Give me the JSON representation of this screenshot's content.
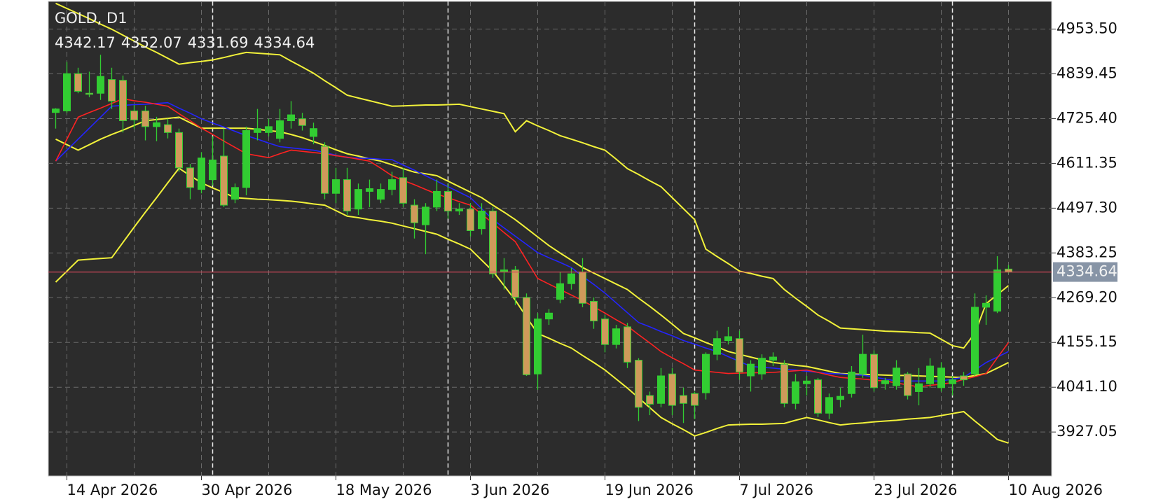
{
  "chart_data": {
    "type": "candlestick",
    "title": "GOLD, D1",
    "categories": [
      null,
      "14 Apr 2026",
      null,
      null,
      null,
      null,
      null,
      null,
      null,
      null,
      null,
      null,
      null,
      "30 Apr 2026",
      null,
      null,
      null,
      null,
      null,
      null,
      null,
      null,
      null,
      null,
      null,
      "18 May 2026",
      null,
      null,
      null,
      null,
      null,
      null,
      null,
      null,
      null,
      null,
      null,
      "3 Jun 2026",
      null,
      null,
      null,
      null,
      null,
      null,
      null,
      null,
      null,
      null,
      null,
      "19 Jun 2026",
      null,
      null,
      null,
      null,
      null,
      null,
      null,
      null,
      null,
      null,
      null,
      "7 Jul 2026",
      null,
      null,
      null,
      null,
      null,
      null,
      null,
      null,
      null,
      null,
      null,
      "23 Jul 2026",
      null,
      null,
      null,
      null,
      null,
      null,
      null,
      null,
      null,
      null,
      null,
      "10 Aug 2026"
    ],
    "open": [
      4741,
      4745,
      4840,
      4790,
      4790,
      4825,
      4823,
      4745,
      4745,
      4705,
      4710,
      4690,
      4600,
      4545,
      4570,
      4630,
      4520,
      4550,
      4690,
      4690,
      4675,
      4720,
      4725,
      4680,
      4655,
      4535,
      4570,
      4495,
      4540,
      4520,
      4545,
      4575,
      4505,
      4455,
      4500,
      4540,
      4490,
      4495,
      4445,
      4490,
      4335,
      4340,
      4270,
      4075,
      4215,
      4265,
      4305,
      4335,
      4260,
      4215,
      4150,
      4195,
      4110,
      4020,
      4000,
      4075,
      4020,
      4025,
      4027,
      4125,
      4160,
      4165,
      4070,
      4075,
      4110,
      4100,
      4000,
      4050,
      4060,
      3975,
      4010,
      4025,
      4075,
      4125,
      4050,
      4045,
      4075,
      4030,
      4050,
      4040,
      4050,
      4070,
      4075,
      4245,
      4235,
      4342.17
    ],
    "high": [
      4752,
      4870,
      4855,
      4845,
      4888,
      4855,
      4835,
      4760,
      4758,
      4730,
      4725,
      4700,
      4610,
      4640,
      4680,
      4700,
      4560,
      4705,
      4750,
      4725,
      4750,
      4770,
      4740,
      4715,
      4665,
      4600,
      4600,
      4560,
      4570,
      4560,
      4590,
      4600,
      4520,
      4510,
      4570,
      4560,
      4510,
      4510,
      4510,
      4500,
      4370,
      4350,
      4280,
      4230,
      4240,
      4335,
      4345,
      4370,
      4270,
      4225,
      4200,
      4205,
      4115,
      4030,
      4090,
      4090,
      4040,
      4030,
      4130,
      4185,
      4195,
      4185,
      4110,
      4125,
      4130,
      4110,
      4075,
      4070,
      4065,
      4025,
      4040,
      4095,
      4175,
      4135,
      4065,
      4110,
      4080,
      4090,
      4115,
      4105,
      4070,
      4080,
      4280,
      4275,
      4375,
      4352.07
    ],
    "low": [
      4700,
      4740,
      4790,
      4780,
      4773,
      4750,
      4690,
      4700,
      4670,
      4668,
      4675,
      4590,
      4520,
      4535,
      4555,
      4500,
      4510,
      4530,
      4670,
      4680,
      4665,
      4700,
      4695,
      4660,
      4520,
      4510,
      4480,
      4480,
      4500,
      4510,
      4530,
      4500,
      4420,
      4380,
      4490,
      4470,
      4480,
      4425,
      4430,
      4320,
      4290,
      4250,
      4070,
      4035,
      4200,
      4255,
      4290,
      4245,
      4190,
      4130,
      4140,
      4090,
      3955,
      3970,
      3990,
      3970,
      3950,
      3960,
      4010,
      4110,
      4150,
      4060,
      4030,
      4060,
      4095,
      3990,
      3985,
      4020,
      3965,
      3960,
      3990,
      4015,
      4065,
      4030,
      4035,
      4035,
      4010,
      3995,
      4040,
      4030,
      4020,
      4045,
      4070,
      4200,
      4230,
      4331.69
    ],
    "close": [
      4750,
      4840,
      4795,
      4788,
      4833,
      4770,
      4720,
      4722,
      4705,
      4715,
      4690,
      4600,
      4550,
      4625,
      4620,
      4505,
      4550,
      4695,
      4700,
      4705,
      4720,
      4735,
      4708,
      4700,
      4535,
      4570,
      4490,
      4545,
      4547,
      4545,
      4570,
      4510,
      4460,
      4500,
      4540,
      4490,
      4495,
      4440,
      4490,
      4330,
      4340,
      4270,
      4073,
      4215,
      4230,
      4305,
      4330,
      4255,
      4210,
      4150,
      4190,
      4105,
      3990,
      3998,
      4070,
      3995,
      4000,
      3995,
      4125,
      4165,
      4170,
      4080,
      4100,
      4115,
      4118,
      4000,
      4055,
      4057,
      3975,
      4015,
      4018,
      4080,
      4125,
      4040,
      4058,
      4090,
      4020,
      4050,
      4095,
      4090,
      4060,
      4060,
      4245,
      4255,
      4340,
      4334.64
    ],
    "bull_color": "#32cd32",
    "bear_color": "#cf9a5a",
    "lines": [
      {
        "color": "#f2f23a",
        "values": [
          5019,
          5006,
          4993,
          4980,
          4966,
          4953,
          4938,
          4923,
          4908,
          4894,
          4879,
          4864,
          4868,
          4871,
          4875,
          4881,
          4888,
          4894,
          4892,
          4890,
          4888,
          4872,
          4857,
          4841,
          4822,
          4804,
          4785,
          4778,
          4771,
          4764,
          4757,
          4758,
          4759,
          4760,
          4760,
          4761,
          4762,
          4756,
          4750,
          4744,
          4738,
          4692,
          4720,
          4707,
          4695,
          4682,
          4673,
          4664,
          4654,
          4645,
          4622,
          4598,
          4583,
          4567,
          4552,
          4524,
          4496,
          4468,
          4393,
          4374,
          4356,
          4337,
          4331,
          4324,
          4318,
          4290,
          4268,
          4247,
          4225,
          4209,
          4192,
          4190,
          4188,
          4186,
          4184,
          4183,
          4182,
          4180,
          4179,
          4163,
          4147,
          4141,
          4179,
          4254,
          4277,
          4300
        ]
      },
      {
        "color": "#f2f23a",
        "values": [
          4673,
          4659,
          4645,
          4659,
          4673,
          4685,
          4696,
          4708,
          4720,
          4723,
          4726,
          4729,
          4715,
          4701,
          4701,
          4701,
          4701,
          4701,
          4698,
          4695,
          4692,
          4685,
          4677,
          4667,
          4657,
          4646,
          4636,
          4630,
          4623,
          4617,
          4608,
          4598,
          4589,
          4585,
          4580,
          4566,
          4552,
          4538,
          4524,
          4505,
          4487,
          4468,
          4446,
          4424,
          4402,
          4383,
          4365,
          4346,
          4332,
          4318,
          4304,
          4290,
          4268,
          4247,
          4225,
          4202,
          4178,
          4167,
          4155,
          4144,
          4132,
          4125,
          4118,
          4111,
          4104,
          4101,
          4097,
          4094,
          4088,
          4082,
          4076,
          4075,
          4074,
          4073,
          4072,
          4071,
          4071,
          4070,
          4069,
          4068,
          4067,
          4066,
          4071,
          4076,
          4090,
          4104
        ]
      },
      {
        "color": "#f2f23a",
        "values": [
          4309,
          4337,
          4365,
          4367,
          4369,
          4371,
          4410,
          4449,
          4487,
          4524,
          4562,
          4599,
          4580,
          4562,
          4549,
          4537,
          4524,
          4522,
          4520,
          4519,
          4517,
          4515,
          4512,
          4508,
          4505,
          4491,
          4477,
          4473,
          4468,
          4464,
          4459,
          4452,
          4445,
          4438,
          4431,
          4418,
          4406,
          4393,
          4365,
          4337,
          4300,
          4263,
          4220,
          4178,
          4166,
          4153,
          4141,
          4122,
          4104,
          4085,
          4062,
          4039,
          4014,
          3989,
          3964,
          3948,
          3933,
          3917,
          3926,
          3936,
          3945,
          3946,
          3947,
          3947,
          3948,
          3949,
          3957,
          3964,
          3958,
          3951,
          3945,
          3948,
          3950,
          3953,
          3955,
          3957,
          3960,
          3962,
          3964,
          3969,
          3974,
          3979,
          3955,
          3932,
          3908,
          3899
        ]
      },
      {
        "color": "#2424ff",
        "values": [
          4617,
          4645,
          4673,
          4701,
          4729,
          4757,
          4759,
          4761,
          4762,
          4764,
          4766,
          4752,
          4739,
          4725,
          4714,
          4704,
          4693,
          4682,
          4673,
          4663,
          4654,
          4651,
          4648,
          4645,
          4639,
          4632,
          4626,
          4625,
          4624,
          4622,
          4621,
          4607,
          4594,
          4580,
          4566,
          4552,
          4538,
          4524,
          4496,
          4468,
          4447,
          4426,
          4405,
          4384,
          4371,
          4359,
          4346,
          4324,
          4303,
          4281,
          4256,
          4231,
          4206,
          4195,
          4183,
          4172,
          4160,
          4151,
          4141,
          4132,
          4119,
          4107,
          4094,
          4092,
          4090,
          4087,
          4085,
          4082,
          4079,
          4076,
          4075,
          4073,
          4072,
          4067,
          4062,
          4057,
          4057,
          4057,
          4057,
          4057,
          4062,
          4066,
          4085,
          4104,
          4118,
          4132
        ]
      },
      {
        "color": "#ff2222",
        "values": [
          4617,
          4673,
          4729,
          4741,
          4752,
          4764,
          4776,
          4771,
          4767,
          4762,
          4757,
          4738,
          4720,
          4701,
          4685,
          4668,
          4652,
          4636,
          4631,
          4626,
          4636,
          4645,
          4642,
          4639,
          4636,
          4631,
          4627,
          4622,
          4617,
          4599,
          4580,
          4568,
          4557,
          4545,
          4533,
          4524,
          4514,
          4505,
          4482,
          4459,
          4435,
          4412,
          4365,
          4318,
          4304,
          4290,
          4276,
          4262,
          4246,
          4230,
          4213,
          4197,
          4175,
          4154,
          4132,
          4116,
          4101,
          4085,
          4082,
          4079,
          4076,
          4077,
          4078,
          4078,
          4079,
          4081,
          4083,
          4085,
          4079,
          4072,
          4066,
          4064,
          4062,
          4059,
          4057,
          4052,
          4047,
          4042,
          4046,
          4049,
          4053,
          4061,
          4068,
          4076,
          4116,
          4155
        ]
      }
    ],
    "price_line_color": "#d0485a",
    "ylim": [
      3815,
      5024
    ],
    "yticks": [
      3927.05,
      {
        "value": 4041.1,
        "label": "4041.10"
      },
      4155.15,
      {
        "value": 4269.2,
        "label": "4269.20"
      },
      4383.25,
      {
        "value": 4497.3,
        "label": "4497.30"
      },
      4611.35,
      {
        "value": 4725.4,
        "label": "4725.40"
      },
      4839.45,
      {
        "value": 4953.5,
        "label": "4953.50"
      }
    ],
    "grid": true
  }
}
